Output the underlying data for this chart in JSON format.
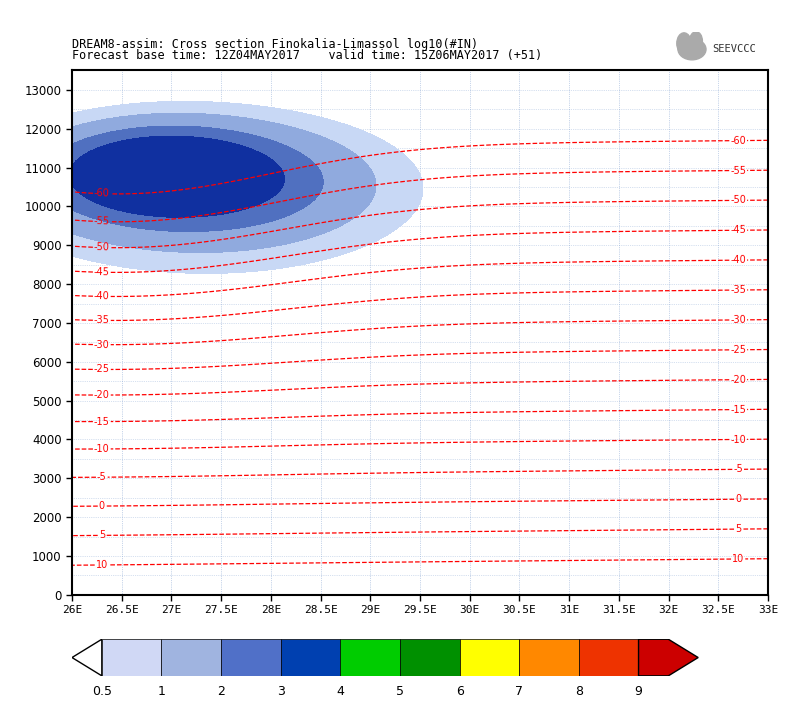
{
  "title_line1": "DREAM8-assim: Cross section Finokalia-Limassol log10(#IN)",
  "title_line2": "Forecast base time: 12Z04MAY2017    valid time: 15Z06MAY2017 (+51)",
  "xmin": 26.0,
  "xmax": 33.0,
  "ymin": 0,
  "ymax": 13500,
  "xticks": [
    26.0,
    26.5,
    27.0,
    27.5,
    28.0,
    28.5,
    29.0,
    29.5,
    30.0,
    30.5,
    31.0,
    31.5,
    32.0,
    32.5,
    33.0
  ],
  "xticklabels": [
    "26E",
    "26.5E",
    "27E",
    "27.5E",
    "28E",
    "28.5E",
    "29E",
    "29.5E",
    "30E",
    "30.5E",
    "31E",
    "31.5E",
    "32E",
    "32.5E",
    "33E"
  ],
  "yticks": [
    0,
    1000,
    2000,
    3000,
    4000,
    5000,
    6000,
    7000,
    8000,
    9000,
    10000,
    11000,
    12000,
    13000
  ],
  "fill_level1_color": "#c8d8f5",
  "fill_level2_color": "#90aade",
  "fill_level3_color": "#5070c0",
  "fill_level4_color": "#1030a0",
  "contour_color": "red",
  "grid_color": "#7799cc",
  "background_color": "white",
  "logo_text": "SEEVCCC",
  "cb_colors": [
    "#d0d8f5",
    "#a0b4e0",
    "#5070c8",
    "#0040b0",
    "#00cc00",
    "#009000",
    "#ffff00",
    "#ff8800",
    "#ee3300",
    "#cc0000"
  ],
  "cb_labels": [
    "0.5",
    "1",
    "2",
    "3",
    "4",
    "5",
    "6",
    "7",
    "8",
    "9"
  ],
  "temp_levels": [
    -60,
    -55,
    -50,
    -45,
    -40,
    -35,
    -30,
    -25,
    -20,
    -15,
    -10,
    -5,
    0,
    5,
    10
  ],
  "ice_fill_levels": [
    0.5,
    1.0,
    2.0,
    3.2,
    10.0
  ]
}
